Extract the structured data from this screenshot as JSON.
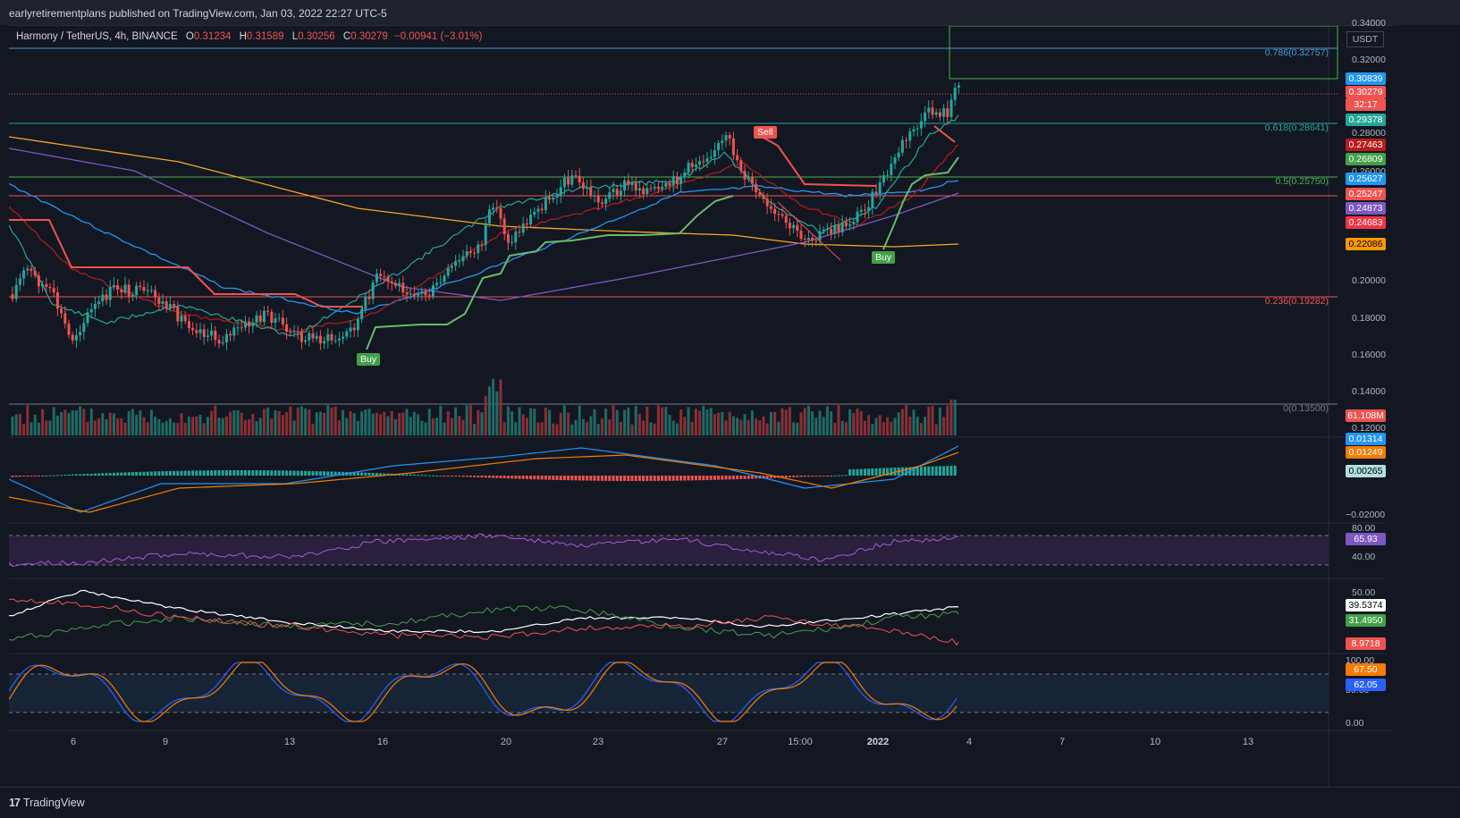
{
  "publisher": "earlyretirementplans published on TradingView.com, Jan 03, 2022 22:27 UTC-5",
  "legend": {
    "symbol": "Harmony / TetherUS, 4h, BINANCE",
    "open_label": "O",
    "open": "0.31234",
    "high_label": "H",
    "high": "0.31589",
    "low_label": "L",
    "low": "0.30256",
    "close_label": "C",
    "close": "0.30279",
    "change": "−0.00941 (−3.01%)"
  },
  "currency": "USDT",
  "price_axis": [
    "0.34000",
    "0.32000",
    "0.28000",
    "0.26000",
    "0.20000",
    "0.18000",
    "0.16000",
    "0.14000",
    "0.12000"
  ],
  "macd_axis": [
    "−0.02000"
  ],
  "rsi_axis": [
    "80.00",
    "40.00"
  ],
  "dmi_axis": [
    "50.00"
  ],
  "stoch_axis": [
    "100.00",
    "50.00",
    "0.00"
  ],
  "price_tags": [
    {
      "value": "0.30839",
      "color": "#2196f3",
      "text": "#ffffff"
    },
    {
      "value": "0.30279",
      "color": "#ef5350",
      "text": "#ffffff"
    },
    {
      "value": "32:17",
      "color": "#ef5350",
      "text": "#ffffff"
    },
    {
      "value": "0.29378",
      "color": "#26a69a",
      "text": "#ffffff"
    },
    {
      "value": "0.27463",
      "color": "#b71c1c",
      "text": "#ffffff"
    },
    {
      "value": "0.26809",
      "color": "#43a047",
      "text": "#ffffff"
    },
    {
      "value": "0.25627",
      "color": "#2196f3",
      "text": "#ffffff"
    },
    {
      "value": "0.25247",
      "color": "#ef5350",
      "text": "#ffffff"
    },
    {
      "value": "0.24873",
      "color": "#7e57c2",
      "text": "#ffffff"
    },
    {
      "value": "0.24683",
      "color": "#f23645",
      "text": "#ffffff"
    },
    {
      "value": "0.22086",
      "color": "#ff9800",
      "text": "#000000"
    },
    {
      "value": "61.108M",
      "color": "#ef5350",
      "text": "#ffffff"
    },
    {
      "value": "0.01314",
      "color": "#2196f3",
      "text": "#ffffff"
    },
    {
      "value": "0.01249",
      "color": "#f57c00",
      "text": "#ffffff"
    },
    {
      "value": "0.00265",
      "color": "#b2dfdb",
      "text": "#000000"
    },
    {
      "value": "65.93",
      "color": "#7e57c2",
      "text": "#ffffff"
    },
    {
      "value": "39.5374",
      "color": "#ffffff",
      "text": "#000000"
    },
    {
      "value": "31.4950",
      "color": "#43a047",
      "text": "#ffffff"
    },
    {
      "value": "8.9718",
      "color": "#ef5350",
      "text": "#ffffff"
    },
    {
      "value": "67.50",
      "color": "#f57c00",
      "text": "#ffffff"
    },
    {
      "value": "62.05",
      "color": "#2962ff",
      "text": "#ffffff"
    }
  ],
  "fib_levels": [
    {
      "label": "0.786(0.32757)",
      "color": "#4a9bd4"
    },
    {
      "label": "0.618(0.28641)",
      "color": "#26a69a"
    },
    {
      "label": "0.5(0.25750)",
      "color": "#4caf50"
    },
    {
      "label": "0.236(0.19282)",
      "color": "#ef5350"
    },
    {
      "label": "0(0.13500)",
      "color": "#787b86"
    }
  ],
  "time_axis": [
    "6",
    "9",
    "13",
    "16",
    "20",
    "23",
    "27",
    "15:00",
    "2022",
    "4",
    "7",
    "10",
    "13"
  ],
  "signals": [
    {
      "label": "Buy",
      "color": "#43a047"
    },
    {
      "label": "Sell",
      "color": "#ef5350"
    },
    {
      "label": "Buy",
      "color": "#43a047"
    }
  ],
  "footer": {
    "logo": "TradingView"
  }
}
